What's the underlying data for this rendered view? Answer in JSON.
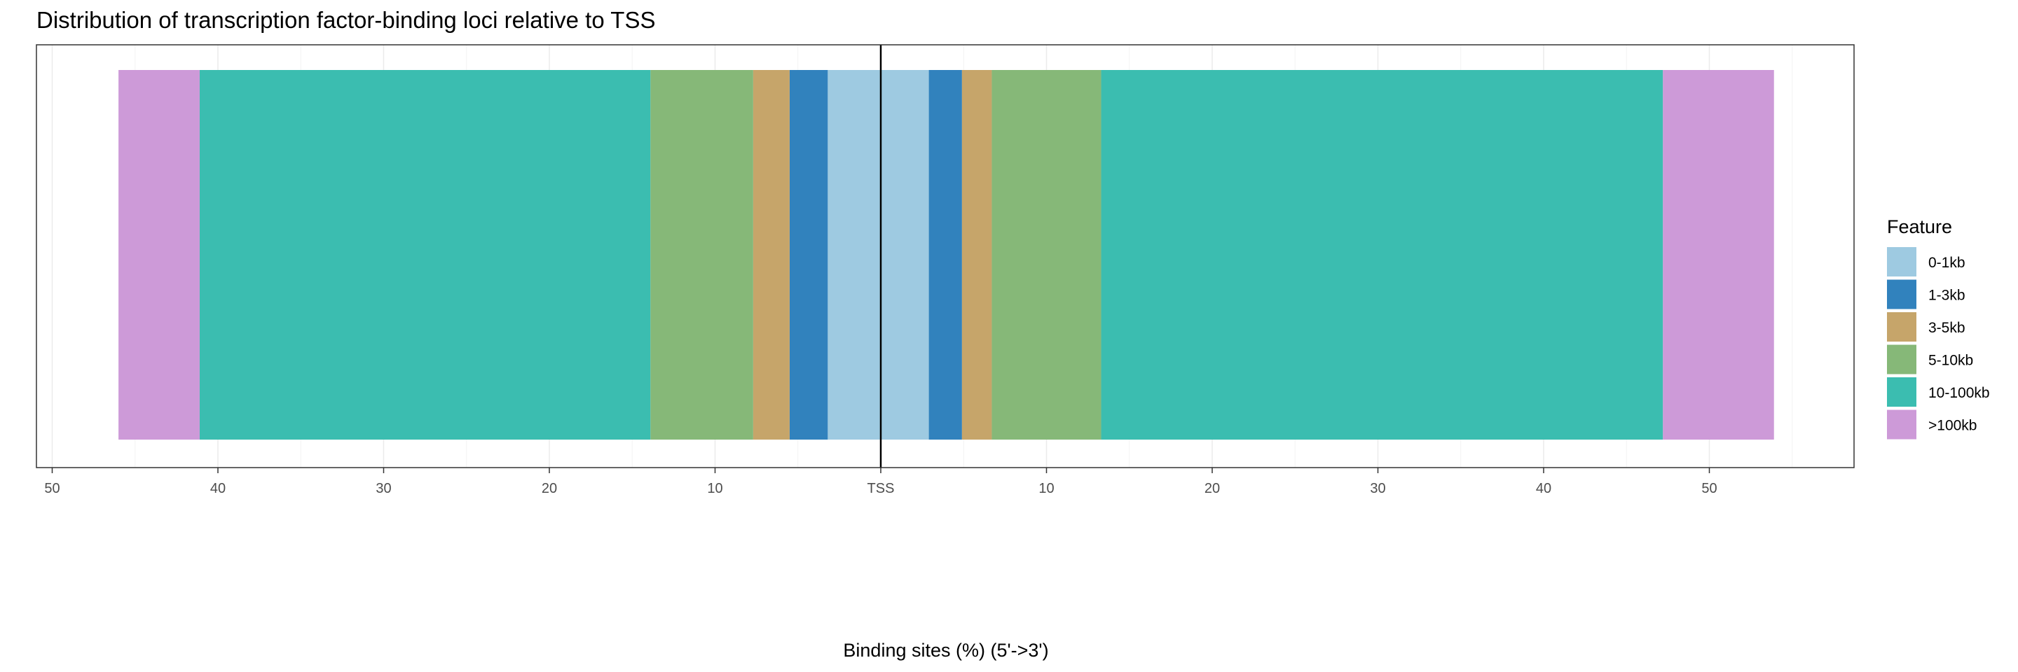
{
  "chart_data": {
    "type": "bar",
    "orientation": "horizontal-stacked-diverging",
    "title": "Distribution of transcription factor-binding loci relative to TSS",
    "xlabel": "Binding sites (%) (5'->3')",
    "ylabel": "",
    "xlim": [
      -50,
      50
    ],
    "x_ticks": [
      -50,
      -40,
      -30,
      -20,
      -10,
      0,
      10,
      20,
      30,
      40,
      50
    ],
    "x_tick_labels": [
      "50",
      "40",
      "30",
      "20",
      "10",
      "TSS",
      "10",
      "20",
      "30",
      "40",
      "50"
    ],
    "center_line": "TSS",
    "grid": true,
    "legend": {
      "title": "Feature",
      "position": "right"
    },
    "categories": [
      "0-1kb",
      "1-3kb",
      "3-5kb",
      "5-10kb",
      "10-100kb",
      ">100kb"
    ],
    "colors": {
      "0-1kb": "#9ecae1",
      "1-3kb": "#3182bd",
      "3-5kb": "#c6a56a",
      "5-10kb": "#86b878",
      "10-100kb": "#3bbdb0",
      ">100kb": "#cd9ad8"
    },
    "series": [
      {
        "direction": "upstream",
        "values": [
          3.2,
          2.3,
          2.2,
          6.2,
          27.2,
          4.9
        ]
      },
      {
        "direction": "downstream",
        "values": [
          2.9,
          2.0,
          1.8,
          6.6,
          33.9,
          6.7
        ]
      }
    ]
  }
}
